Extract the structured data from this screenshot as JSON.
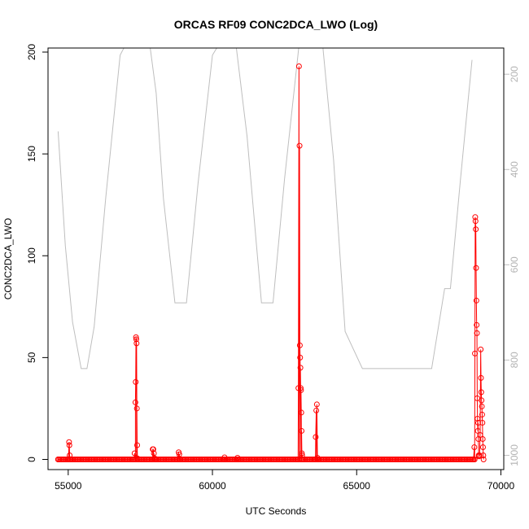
{
  "chart_data": {
    "type": "line",
    "title": "ORCAS RF09 CONC2DCA_LWO (Log)",
    "xlabel": "UTC Seconds",
    "ylabel": "CONC2DCA_LWO",
    "xlim": [
      54300,
      70100
    ],
    "ylim": [
      -5,
      202
    ],
    "y2lim": [
      1030,
      145
    ],
    "x_ticks": [
      55000,
      60000,
      65000,
      70000
    ],
    "y_ticks": [
      0,
      50,
      100,
      150,
      200
    ],
    "y2_ticks": [
      200,
      400,
      600,
      800,
      1000
    ],
    "grid": false,
    "colors": {
      "primary": "#ff0000",
      "secondary": "#bebebe"
    },
    "series": [
      {
        "axis": "left",
        "style": "line+circles",
        "baseline": {
          "x_start": 54650,
          "x_end": 69100,
          "step": 40,
          "value": 0
        },
        "points": [
          [
            54650,
            0
          ],
          [
            55000,
            0
          ],
          [
            55030,
            8.5
          ],
          [
            55040,
            7
          ],
          [
            55050,
            2
          ],
          [
            55070,
            0
          ],
          [
            57250,
            0
          ],
          [
            57300,
            3
          ],
          [
            57330,
            28
          ],
          [
            57340,
            38
          ],
          [
            57350,
            60
          ],
          [
            57360,
            59
          ],
          [
            57370,
            57
          ],
          [
            57380,
            25
          ],
          [
            57390,
            7
          ],
          [
            57400,
            0.5
          ],
          [
            57450,
            0
          ],
          [
            57900,
            0
          ],
          [
            57930,
            5
          ],
          [
            57950,
            5
          ],
          [
            57970,
            3
          ],
          [
            58000,
            0.5
          ],
          [
            58040,
            0
          ],
          [
            58800,
            0
          ],
          [
            58830,
            3.5
          ],
          [
            58850,
            2.5
          ],
          [
            58870,
            0
          ],
          [
            60400,
            0
          ],
          [
            60420,
            1
          ],
          [
            60440,
            0
          ],
          [
            60850,
            0
          ],
          [
            60870,
            0.8
          ],
          [
            60890,
            0
          ],
          [
            62950,
            0
          ],
          [
            62980,
            35
          ],
          [
            63000,
            193
          ],
          [
            63020,
            154
          ],
          [
            63030,
            56
          ],
          [
            63040,
            50
          ],
          [
            63050,
            45
          ],
          [
            63060,
            35
          ],
          [
            63070,
            34
          ],
          [
            63080,
            23
          ],
          [
            63090,
            14
          ],
          [
            63100,
            3
          ],
          [
            63110,
            2
          ],
          [
            63130,
            0
          ],
          [
            63550,
            0
          ],
          [
            63580,
            11
          ],
          [
            63600,
            24
          ],
          [
            63620,
            27
          ],
          [
            63640,
            0.8
          ],
          [
            63660,
            0
          ],
          [
            69050,
            0
          ],
          [
            69080,
            6
          ],
          [
            69100,
            52
          ],
          [
            69110,
            119
          ],
          [
            69120,
            117
          ],
          [
            69130,
            113
          ],
          [
            69140,
            94
          ],
          [
            69150,
            78
          ],
          [
            69160,
            66
          ],
          [
            69170,
            62
          ],
          [
            69180,
            30
          ],
          [
            69190,
            20
          ],
          [
            69200,
            14
          ],
          [
            69210,
            18
          ],
          [
            69220,
            10
          ],
          [
            69230,
            2
          ],
          [
            69240,
            1.5
          ],
          [
            69260,
            2
          ],
          [
            69280,
            12
          ],
          [
            69300,
            54
          ],
          [
            69310,
            40
          ],
          [
            69320,
            33
          ],
          [
            69330,
            29
          ],
          [
            69340,
            26
          ],
          [
            69350,
            22
          ],
          [
            69360,
            18
          ],
          [
            69370,
            10
          ],
          [
            69380,
            6
          ],
          [
            69390,
            2
          ],
          [
            69400,
            0
          ]
        ]
      },
      {
        "axis": "right",
        "style": "line",
        "points": [
          [
            54650,
            320
          ],
          [
            54900,
            560
          ],
          [
            55150,
            720
          ],
          [
            55450,
            818
          ],
          [
            55650,
            818
          ],
          [
            55900,
            730
          ],
          [
            56300,
            460
          ],
          [
            56800,
            160
          ],
          [
            57100,
            125
          ],
          [
            57800,
            125
          ],
          [
            58050,
            240
          ],
          [
            58300,
            460
          ],
          [
            58700,
            680
          ],
          [
            59100,
            680
          ],
          [
            59500,
            430
          ],
          [
            60000,
            160
          ],
          [
            60300,
            130
          ],
          [
            60800,
            130
          ],
          [
            61200,
            330
          ],
          [
            61700,
            680
          ],
          [
            62100,
            680
          ],
          [
            62500,
            420
          ],
          [
            63000,
            140
          ],
          [
            63300,
            125
          ],
          [
            63800,
            125
          ],
          [
            64200,
            380
          ],
          [
            64600,
            740
          ],
          [
            65200,
            818
          ],
          [
            67600,
            818
          ],
          [
            68050,
            650
          ],
          [
            68250,
            650
          ],
          [
            68600,
            420
          ],
          [
            69000,
            170
          ]
        ]
      }
    ]
  }
}
